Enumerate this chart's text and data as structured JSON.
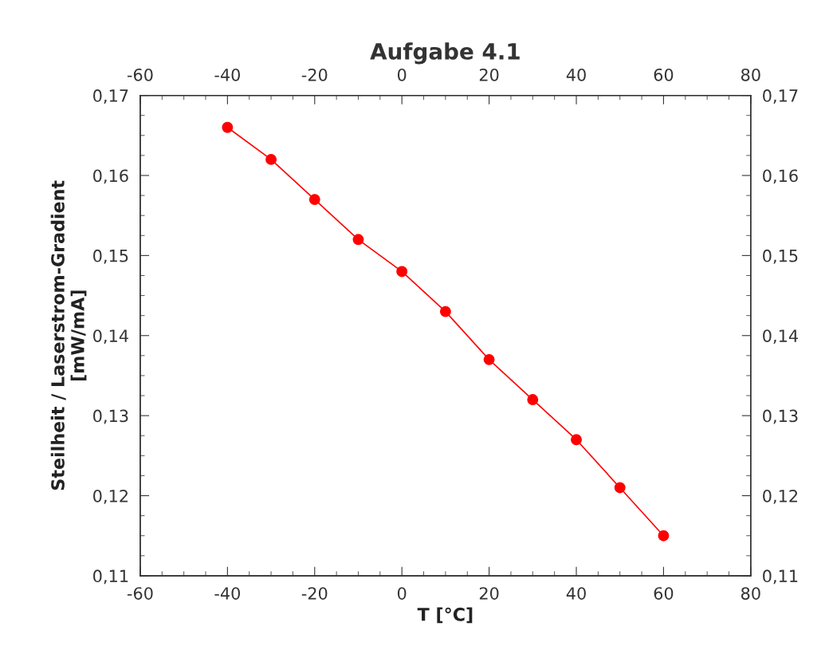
{
  "chart_data": {
    "type": "line",
    "title": "Aufgabe 4.1",
    "xlabel": "T [°C]",
    "ylabel": "Steilheit / Laserstrom-Gradient\n[mW/mA]",
    "x": [
      -40,
      -30,
      -20,
      -10,
      0,
      10,
      20,
      30,
      40,
      50,
      60
    ],
    "series": [
      {
        "color": "#ff0000",
        "values": [
          0.166,
          0.162,
          0.157,
          0.152,
          0.148,
          0.143,
          0.137,
          0.132,
          0.127,
          0.121,
          0.115
        ]
      }
    ],
    "marker": "circle",
    "line_style": "solid",
    "grid": false,
    "legend": false,
    "xlim": [
      -60,
      80
    ],
    "xticks": [
      -60,
      -40,
      -20,
      0,
      20,
      40,
      60,
      80
    ],
    "x2lim": [
      -60,
      80
    ],
    "x2ticks": [
      -60,
      -40,
      -20,
      0,
      20,
      40,
      60,
      80
    ],
    "ylim": [
      0.11,
      0.17
    ],
    "yticks": [
      {
        "value": 0.11,
        "label": "0,11"
      },
      {
        "value": 0.12,
        "label": "0,12"
      },
      {
        "value": 0.13,
        "label": "0,13"
      },
      {
        "value": 0.14,
        "label": "0,14"
      },
      {
        "value": 0.15,
        "label": "0,15"
      },
      {
        "value": 0.16,
        "label": "0,16"
      },
      {
        "value": 0.17,
        "label": "0,17"
      }
    ],
    "y2lim": [
      0.11,
      0.17
    ],
    "y2ticks": [
      {
        "value": 0.11,
        "label": "0,11"
      },
      {
        "value": 0.12,
        "label": "0,12"
      },
      {
        "value": 0.13,
        "label": "0,13"
      },
      {
        "value": 0.14,
        "label": "0,14"
      },
      {
        "value": 0.15,
        "label": "0,15"
      },
      {
        "value": 0.16,
        "label": "0,16"
      },
      {
        "value": 0.17,
        "label": "0,17"
      }
    ]
  }
}
